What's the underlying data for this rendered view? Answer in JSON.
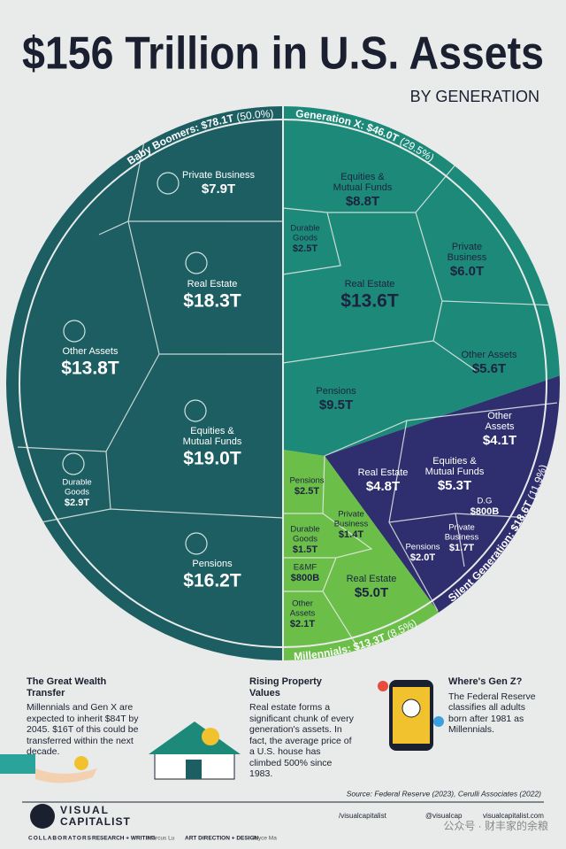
{
  "header": {
    "title": "$156 Trillion in U.S. Assets",
    "subtitle": "BY GENERATION"
  },
  "generations": [
    {
      "label": "Baby Boomers: $78.1T",
      "share": "(50.0%)",
      "assets": [
        {
          "name": [
            "Private Business"
          ],
          "value": "$7.9T"
        },
        {
          "name": [
            "Real Estate"
          ],
          "value": "$18.3T"
        },
        {
          "name": [
            "Other Assets"
          ],
          "value": "$13.8T"
        },
        {
          "name": [
            "Equities &",
            "Mutual Funds"
          ],
          "value": "$19.0T"
        },
        {
          "name": [
            "Durable",
            "Goods"
          ],
          "value": "$2.9T"
        },
        {
          "name": [
            "Pensions"
          ],
          "value": "$16.2T"
        }
      ]
    },
    {
      "label": "Generation X: $46.0T",
      "share": "(29.5%)",
      "assets": [
        {
          "name": [
            "Equities &",
            "Mutual Funds"
          ],
          "value": "$8.8T"
        },
        {
          "name": [
            "Durable",
            "Goods"
          ],
          "value": "$2.5T"
        },
        {
          "name": [
            "Private",
            "Business"
          ],
          "value": "$6.0T"
        },
        {
          "name": [
            "Real Estate"
          ],
          "value": "$13.6T"
        },
        {
          "name": [
            "Other Assets"
          ],
          "value": "$5.6T"
        },
        {
          "name": [
            "Pensions"
          ],
          "value": "$9.5T"
        }
      ]
    },
    {
      "label": "Silent Generation: $18.6T",
      "share": "(11.9%)",
      "assets": [
        {
          "name": [
            "Other",
            "Assets"
          ],
          "value": "$4.1T"
        },
        {
          "name": [
            "Real Estate"
          ],
          "value": "$4.8T"
        },
        {
          "name": [
            "Equities &",
            "Mutual Funds"
          ],
          "value": "$5.3T"
        },
        {
          "name": [
            "D.G"
          ],
          "value": "$800B"
        },
        {
          "name": [
            "Private",
            "Business"
          ],
          "value": "$1.7T"
        },
        {
          "name": [
            "Pensions"
          ],
          "value": "$2.0T"
        }
      ]
    },
    {
      "label": "Millennials: $13.3T",
      "share": "(8.5%)",
      "assets": [
        {
          "name": [
            "Pensions"
          ],
          "value": "$2.5T"
        },
        {
          "name": [
            "Private",
            "Business"
          ],
          "value": "$1.4T"
        },
        {
          "name": [
            "Durable",
            "Goods"
          ],
          "value": "$1.5T"
        },
        {
          "name": [
            "E&MF"
          ],
          "value": "$800B"
        },
        {
          "name": [
            "Real Estate"
          ],
          "value": "$5.0T"
        },
        {
          "name": [
            "Other",
            "Assets"
          ],
          "value": "$2.1T"
        }
      ]
    }
  ],
  "notes": [
    {
      "title": "The Great Wealth Transfer",
      "text": "Millennials and Gen X are expected to inherit $84T by 2045. $16T of this could be transferred within the next decade."
    },
    {
      "title": "Rising Property Values",
      "text": "Real estate forms a significant chunk of every generation's assets. In fact, the average price of a U.S. house has climbed 500% since 1983."
    },
    {
      "title": "Where's Gen Z?",
      "text": "The Federal Reserve classifies all adults born after 1981 as Millennials."
    }
  ],
  "source": "Source: Federal Reserve (2023), Cerulli Associates (2022)",
  "footer": {
    "brand": [
      "VISUAL",
      "CAPITALIST"
    ],
    "social": [
      "/visualcapitalist",
      "@visualcap",
      "visualcapitalist.com"
    ],
    "collaborators": "COLLABORATORS",
    "credits": [
      {
        "role": "RESEARCH + WRITING",
        "name": "Marcus Lu"
      },
      {
        "role": "ART DIRECTION + DESIGN",
        "name": "Joyce Ma"
      }
    ],
    "watermark": "公众号 · 财丰家的余粮"
  }
}
